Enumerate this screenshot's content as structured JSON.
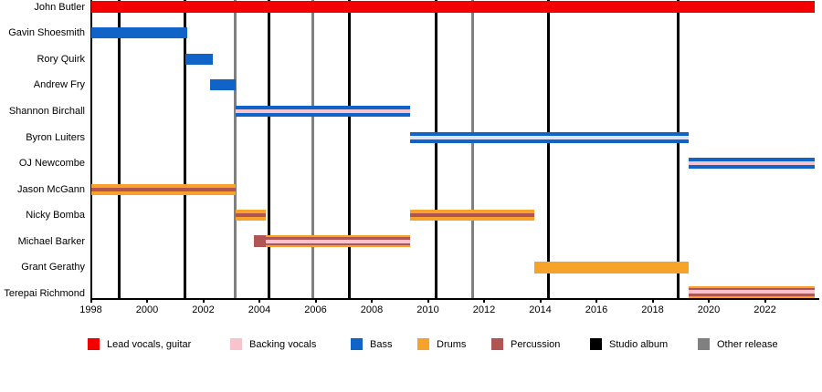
{
  "chart_data": {
    "type": "timeline",
    "x_axis": {
      "start_year": 1998,
      "end_year": 2023.9,
      "ticks": [
        1998,
        2000,
        2002,
        2004,
        2006,
        2008,
        2010,
        2012,
        2014,
        2016,
        2018,
        2020,
        2022
      ]
    },
    "colors": {
      "lead": "#f50000",
      "backing_vocals": "#f7c3cc",
      "bass": "#1164c7",
      "drums": "#f7a22b",
      "percussion": "#b05454",
      "studio_album": "#000000",
      "other_release": "#808080",
      "pale_stripe": "#dfe3f3",
      "axis": "#000000"
    },
    "styles": {
      "lead": {
        "layers": [
          [
            "lead",
            13
          ]
        ]
      },
      "bass": {
        "layers": [
          [
            "bass",
            12
          ]
        ]
      },
      "bass_bvox": {
        "layers": [
          [
            "bass",
            4
          ],
          [
            "backing_vocals",
            4
          ],
          [
            "bass",
            4
          ]
        ]
      },
      "bass_pale": {
        "layers": [
          [
            "bass",
            4
          ],
          [
            "pale_stripe",
            4
          ],
          [
            "bass",
            4
          ]
        ]
      },
      "drums_perc": {
        "layers": [
          [
            "drums",
            4
          ],
          [
            "percussion",
            4
          ],
          [
            "drums",
            4
          ]
        ]
      },
      "perc": {
        "layers": [
          [
            "percussion",
            13
          ]
        ]
      },
      "drums_perc_bvox": {
        "layers": [
          [
            "drums",
            2
          ],
          [
            "percussion",
            2.5
          ],
          [
            "backing_vocals",
            4
          ],
          [
            "percussion",
            2.5
          ],
          [
            "drums",
            2
          ]
        ]
      },
      "drums": {
        "layers": [
          [
            "drums",
            13
          ]
        ]
      }
    },
    "members": [
      {
        "name": "John Butler",
        "segments": [
          {
            "from": 1998.0,
            "to": 2023.78,
            "style": "lead"
          }
        ]
      },
      {
        "name": "Gavin Shoesmith",
        "segments": [
          {
            "from": 1998.0,
            "to": 2001.42,
            "style": "bass"
          }
        ]
      },
      {
        "name": "Rory Quirk",
        "segments": [
          {
            "from": 2001.37,
            "to": 2002.34,
            "style": "bass"
          }
        ]
      },
      {
        "name": "Andrew Fry",
        "segments": [
          {
            "from": 2002.24,
            "to": 2003.15,
            "style": "bass"
          }
        ]
      },
      {
        "name": "Shannon Birchall",
        "segments": [
          {
            "from": 2003.15,
            "to": 2009.37,
            "style": "bass_bvox"
          }
        ]
      },
      {
        "name": "Byron Luiters",
        "segments": [
          {
            "from": 2009.35,
            "to": 2019.28,
            "style": "bass_pale"
          }
        ]
      },
      {
        "name": "OJ Newcombe",
        "segments": [
          {
            "from": 2019.28,
            "to": 2023.78,
            "style": "bass_bvox"
          }
        ]
      },
      {
        "name": "Jason McGann",
        "segments": [
          {
            "from": 1998.0,
            "to": 2003.17,
            "style": "drums_perc"
          }
        ]
      },
      {
        "name": "Nicky Bomba",
        "segments": [
          {
            "from": 2003.15,
            "to": 2004.24,
            "style": "drums_perc"
          },
          {
            "from": 2009.35,
            "to": 2013.8,
            "style": "drums_perc"
          }
        ]
      },
      {
        "name": "Michael Barker",
        "segments": [
          {
            "from": 2003.82,
            "to": 2004.24,
            "style": "perc"
          },
          {
            "from": 2004.24,
            "to": 2009.37,
            "style": "drums_perc_bvox"
          }
        ]
      },
      {
        "name": "Grant Gerathy",
        "segments": [
          {
            "from": 2013.8,
            "to": 2019.28,
            "style": "drums"
          }
        ]
      },
      {
        "name": "Terepai Richmond",
        "segments": [
          {
            "from": 2019.28,
            "to": 2023.78,
            "style": "drums_perc_bvox"
          }
        ]
      }
    ],
    "releases": [
      {
        "year": 1999.0,
        "type": "studio_album"
      },
      {
        "year": 2001.35,
        "type": "studio_album"
      },
      {
        "year": 2003.15,
        "type": "other_release"
      },
      {
        "year": 2004.35,
        "type": "studio_album"
      },
      {
        "year": 2005.9,
        "type": "other_release"
      },
      {
        "year": 2007.2,
        "type": "studio_album"
      },
      {
        "year": 2010.3,
        "type": "studio_album"
      },
      {
        "year": 2011.6,
        "type": "other_release"
      },
      {
        "year": 2014.3,
        "type": "studio_album"
      },
      {
        "year": 2018.9,
        "type": "studio_album"
      }
    ],
    "legend": [
      {
        "label": "Lead vocals, guitar",
        "color": "lead"
      },
      {
        "label": "Backing vocals",
        "color": "backing_vocals"
      },
      {
        "label": "Bass",
        "color": "bass"
      },
      {
        "label": "Drums",
        "color": "drums"
      },
      {
        "label": "Percussion",
        "color": "percussion"
      },
      {
        "label": "Studio album",
        "color": "studio_album"
      },
      {
        "label": "Other release",
        "color": "other_release"
      }
    ]
  }
}
